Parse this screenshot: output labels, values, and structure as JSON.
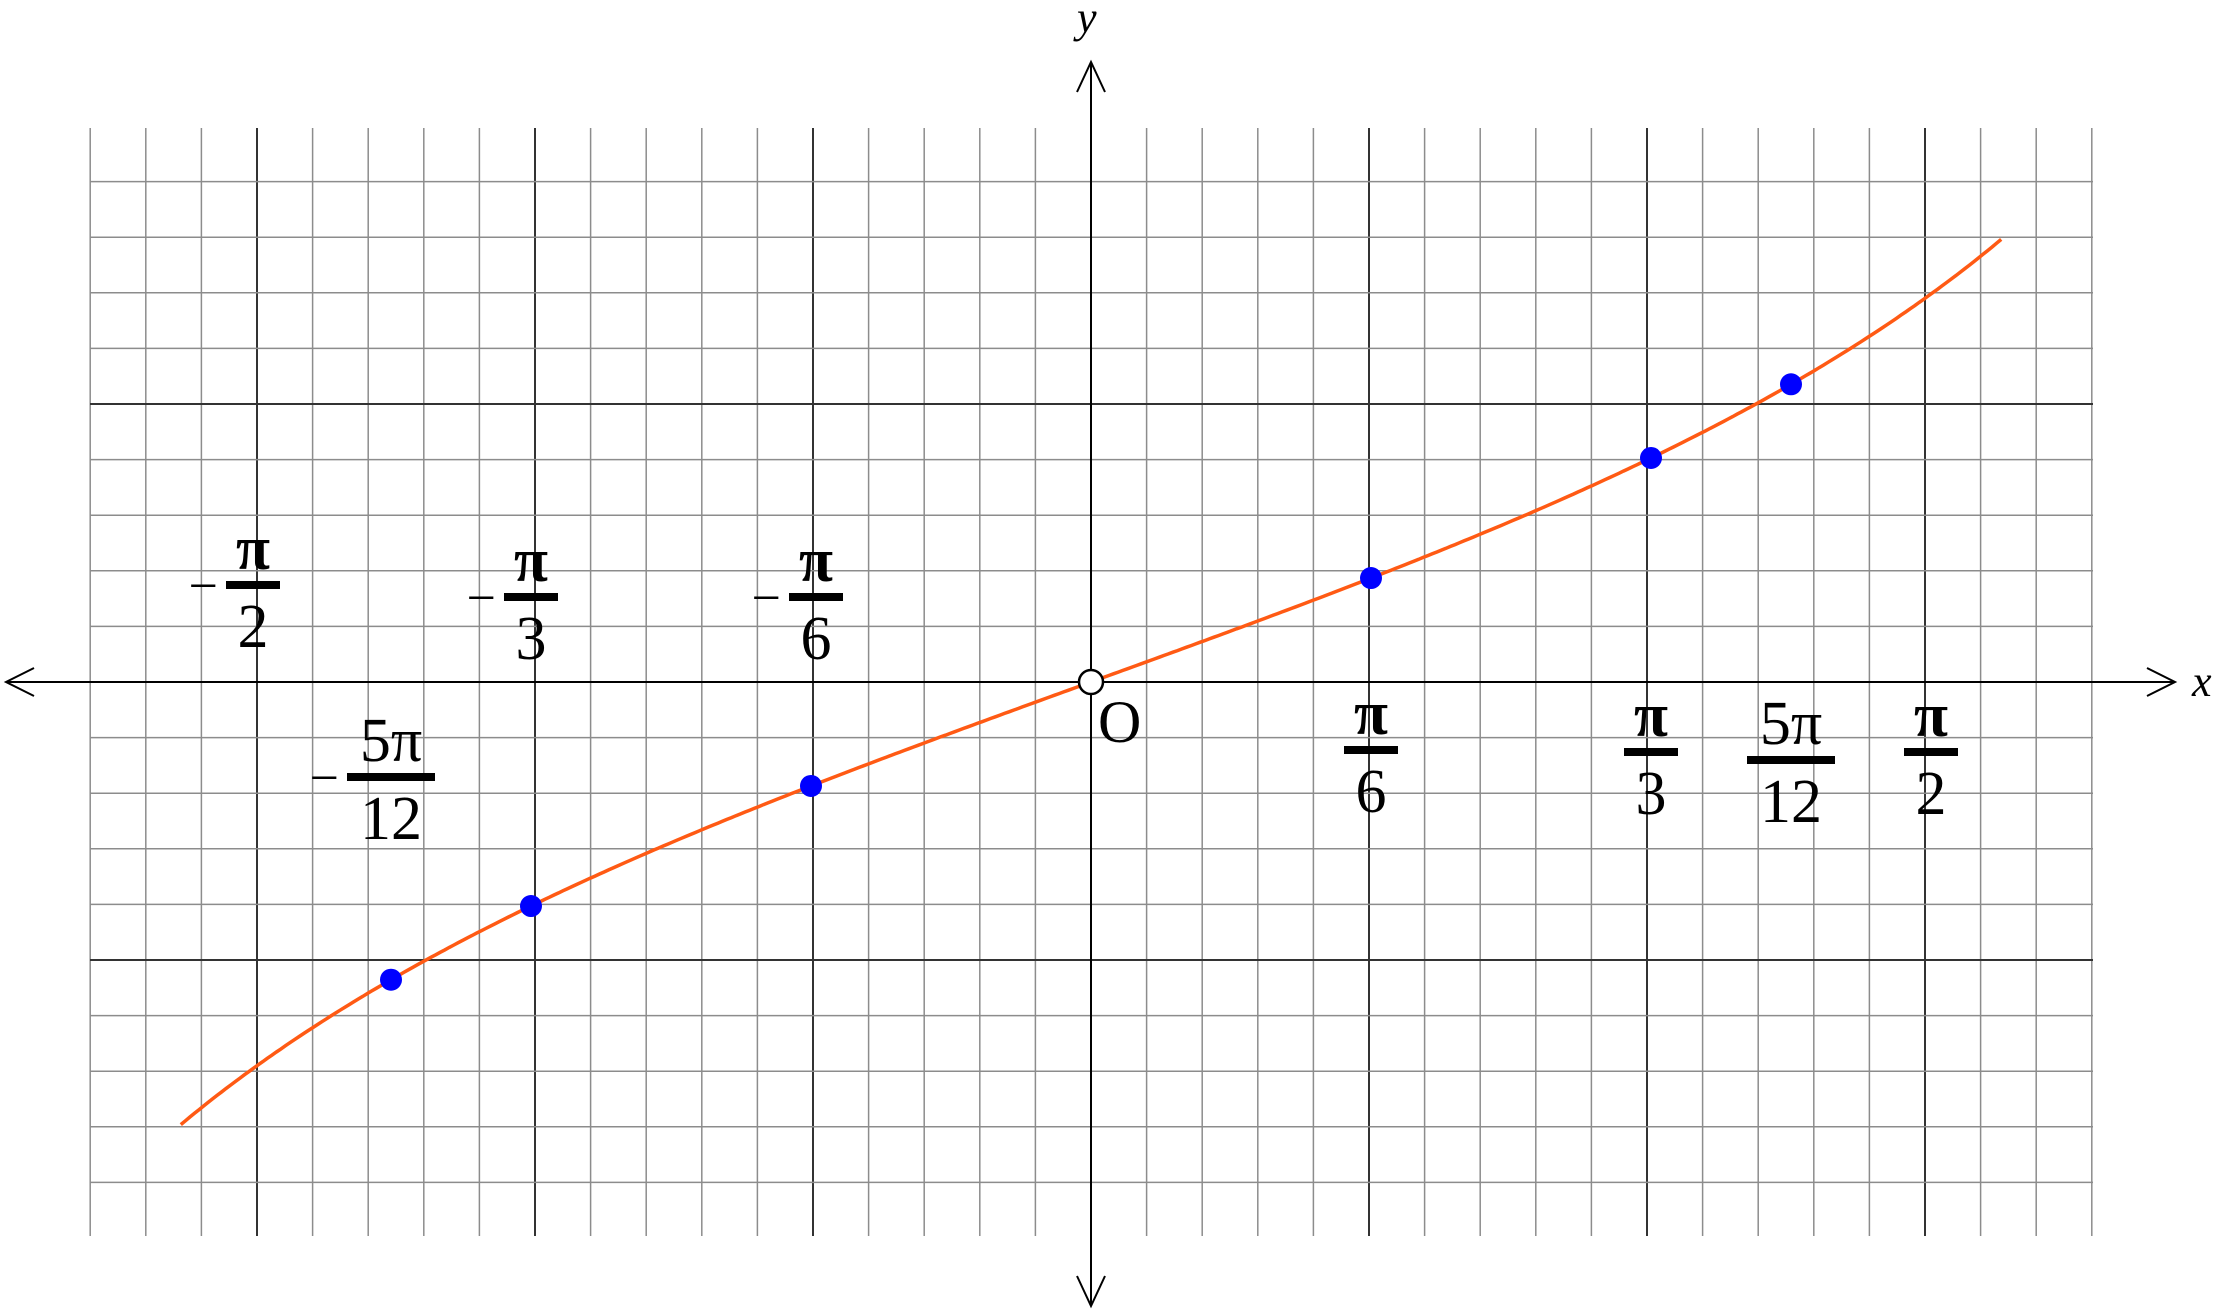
{
  "chart_data": {
    "type": "line",
    "function": "y = tan(x/2)",
    "xlabel": "x",
    "ylabel": "y",
    "origin_label": "O",
    "xlim": [
      -1.7017,
      1.7017
    ],
    "ylim": [
      -1.0,
      1.0
    ],
    "grid": true,
    "colors": {
      "curve": "#ff5a14",
      "points": "#0000ff",
      "grid_major": "#333333",
      "grid_minor": "#8c8c8c",
      "axes": "#000000"
    },
    "tick_labels": [
      {
        "x": -1.5708,
        "sign": "−",
        "num": "π",
        "den": "2"
      },
      {
        "x": -1.309,
        "sign": "−",
        "num": "5π",
        "den": "12"
      },
      {
        "x": -1.0472,
        "sign": "−",
        "num": "π",
        "den": "3"
      },
      {
        "x": -0.5236,
        "sign": "−",
        "num": "π",
        "den": "6"
      },
      {
        "x": 0.5236,
        "sign": "",
        "num": "π",
        "den": "6"
      },
      {
        "x": 1.0472,
        "sign": "",
        "num": "π",
        "den": "3"
      },
      {
        "x": 1.309,
        "sign": "",
        "num": "5π",
        "den": "12"
      },
      {
        "x": 1.5708,
        "sign": "",
        "num": "π",
        "den": "2"
      }
    ],
    "points": [
      {
        "x": -1.309,
        "y": -0.7673
      },
      {
        "x": -1.0472,
        "y": -0.5774
      },
      {
        "x": -0.5236,
        "y": -0.2679
      },
      {
        "x": 0,
        "y": 0
      },
      {
        "x": 0.5236,
        "y": 0.2679
      },
      {
        "x": 1.0472,
        "y": 0.5774
      },
      {
        "x": 1.309,
        "y": 0.7673
      }
    ]
  }
}
